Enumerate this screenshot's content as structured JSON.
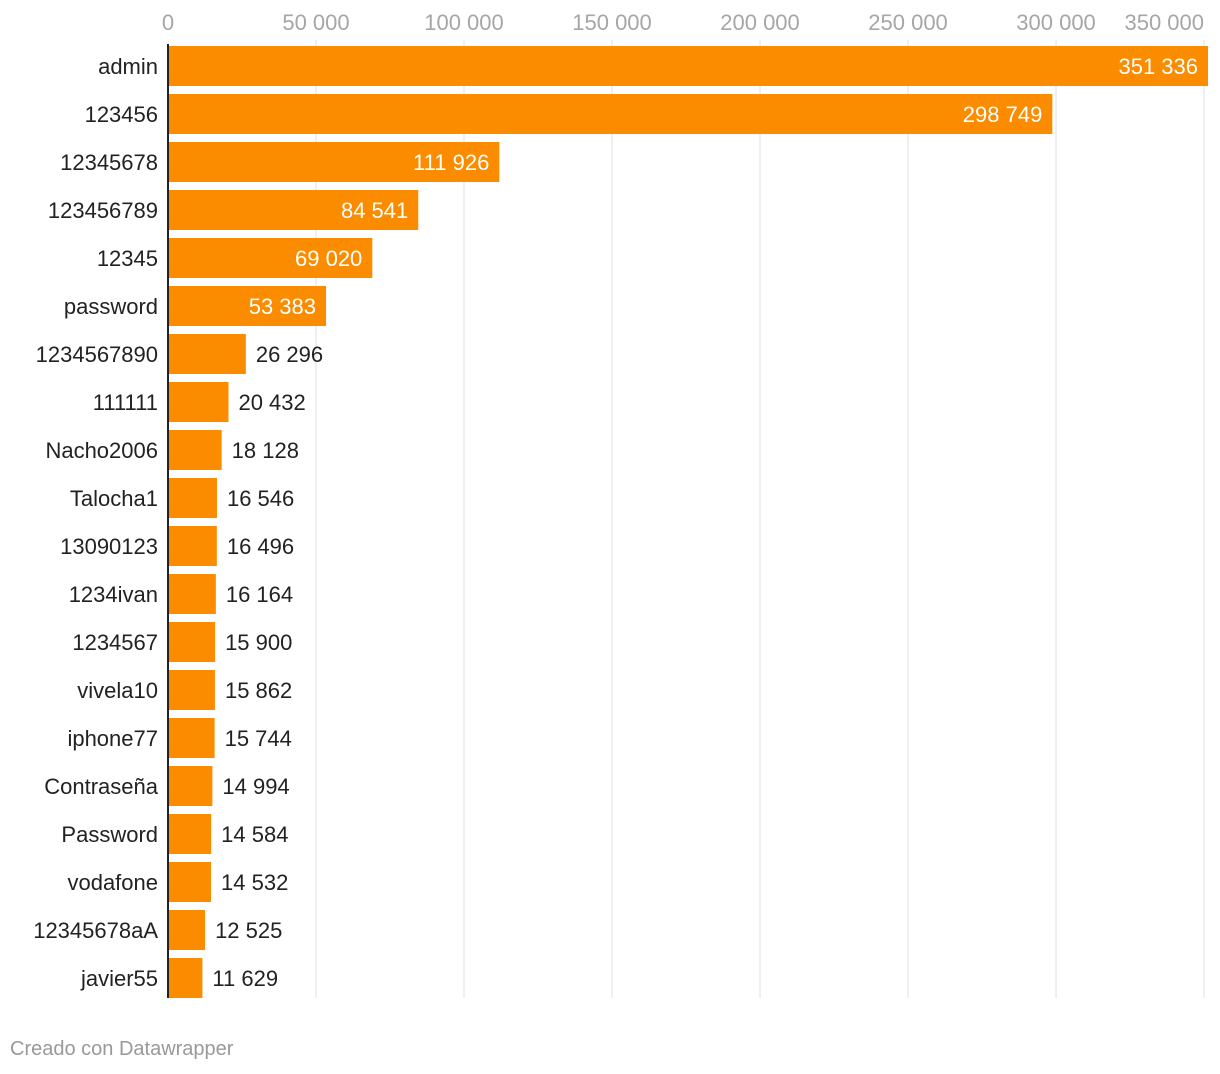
{
  "chart_data": {
    "type": "bar",
    "orientation": "horizontal",
    "title": "",
    "xlabel": "",
    "ylabel": "",
    "xlim": [
      0,
      351336
    ],
    "grid": true,
    "legend": "none",
    "x_ticks": [
      0,
      50000,
      100000,
      150000,
      200000,
      250000,
      300000,
      350000
    ],
    "x_tick_labels": [
      "0",
      "50 000",
      "100 000",
      "150 000",
      "200 000",
      "250 000",
      "300 000",
      "350 000"
    ],
    "categories": [
      "admin",
      "123456",
      "12345678",
      "123456789",
      "12345",
      "password",
      "1234567890",
      "111111",
      "Nacho2006",
      "Talocha1",
      "13090123",
      "1234ivan",
      "1234567",
      "vivela10",
      "iphone77",
      "Contraseña",
      "Password",
      "vodafone",
      "12345678aA",
      "javier55"
    ],
    "values": [
      351336,
      298749,
      111926,
      84541,
      69020,
      53383,
      26296,
      20432,
      18128,
      16546,
      16496,
      16164,
      15900,
      15862,
      15744,
      14994,
      14584,
      14532,
      12525,
      11629
    ],
    "value_labels": [
      "351 336",
      "298 749",
      "111 926",
      "84 541",
      "69 020",
      "53 383",
      "26 296",
      "20 432",
      "18 128",
      "16 546",
      "16 496",
      "16 164",
      "15 900",
      "15 862",
      "15 744",
      "14 994",
      "14 584",
      "14 532",
      "12 525",
      "11 629"
    ],
    "colors": {
      "bar": "#fb8c00",
      "grid": "#e0e0e0",
      "axis": "#222222",
      "label_inside": "#ffffff",
      "label_outside": "#222222"
    }
  },
  "footer": {
    "credit": "Creado con Datawrapper"
  }
}
